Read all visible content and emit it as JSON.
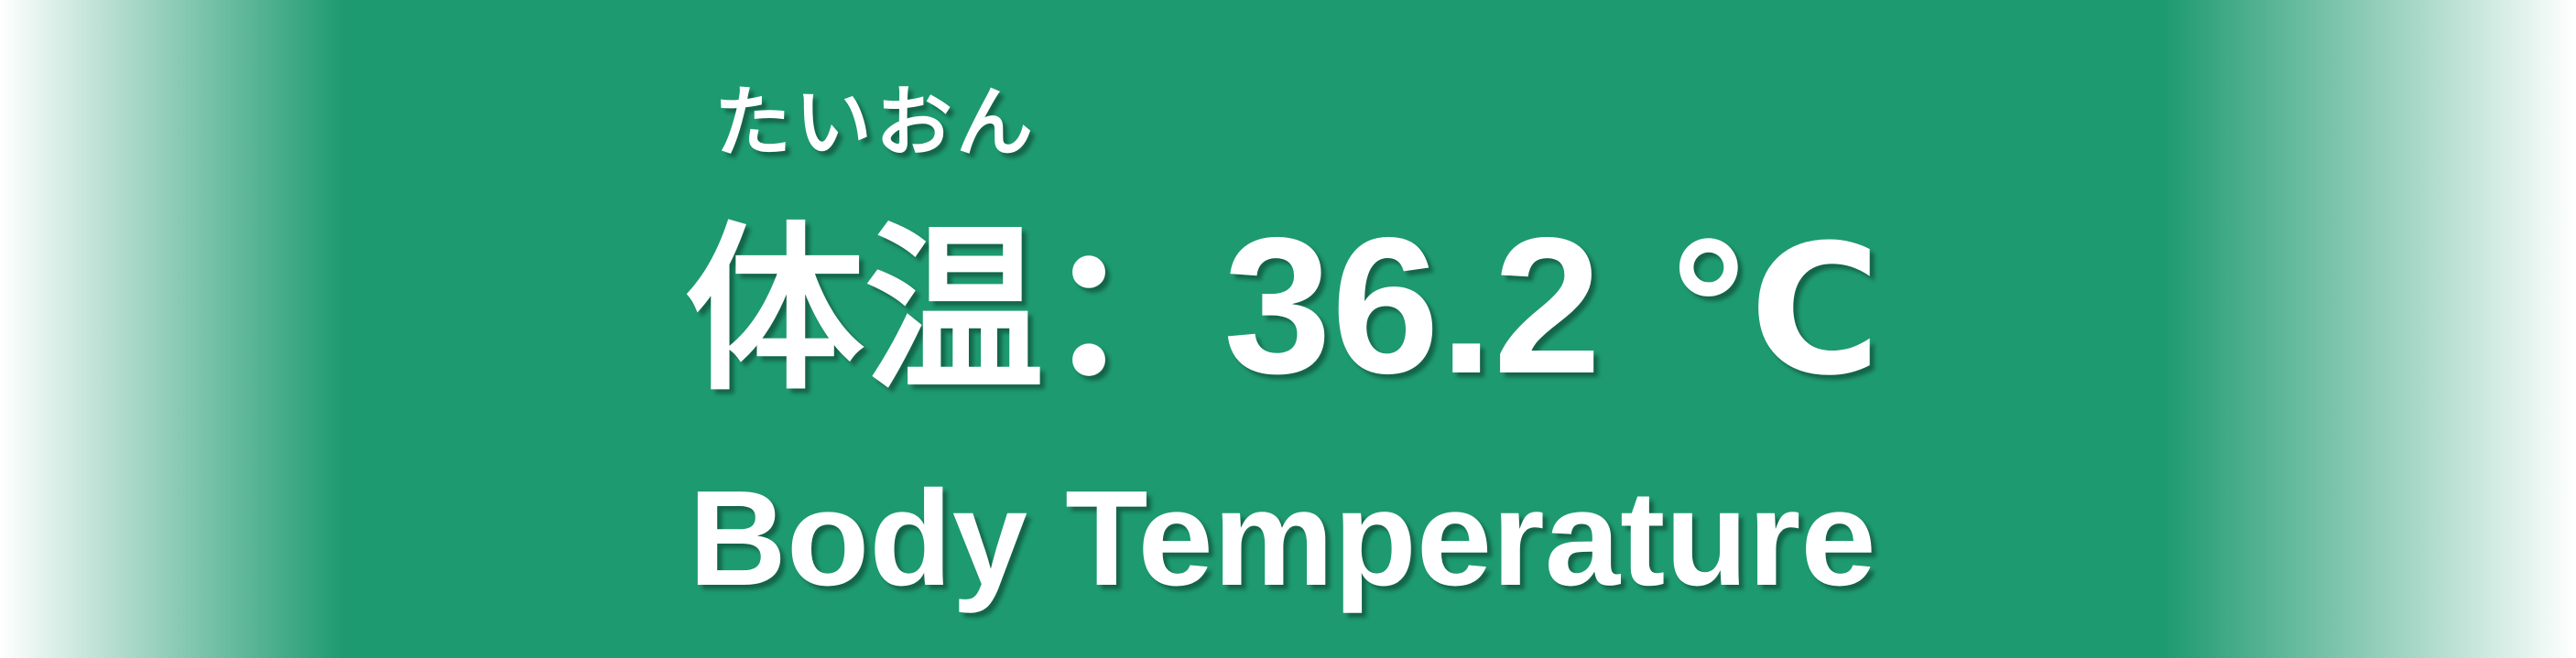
{
  "banner": {
    "reading": "たいおん",
    "label_jp": "体温",
    "separator": "：",
    "value": "36.2",
    "unit": "℃",
    "label_en": "Body Temperature",
    "colors": {
      "background": "#1e9a70",
      "text": "#ffffff"
    }
  }
}
